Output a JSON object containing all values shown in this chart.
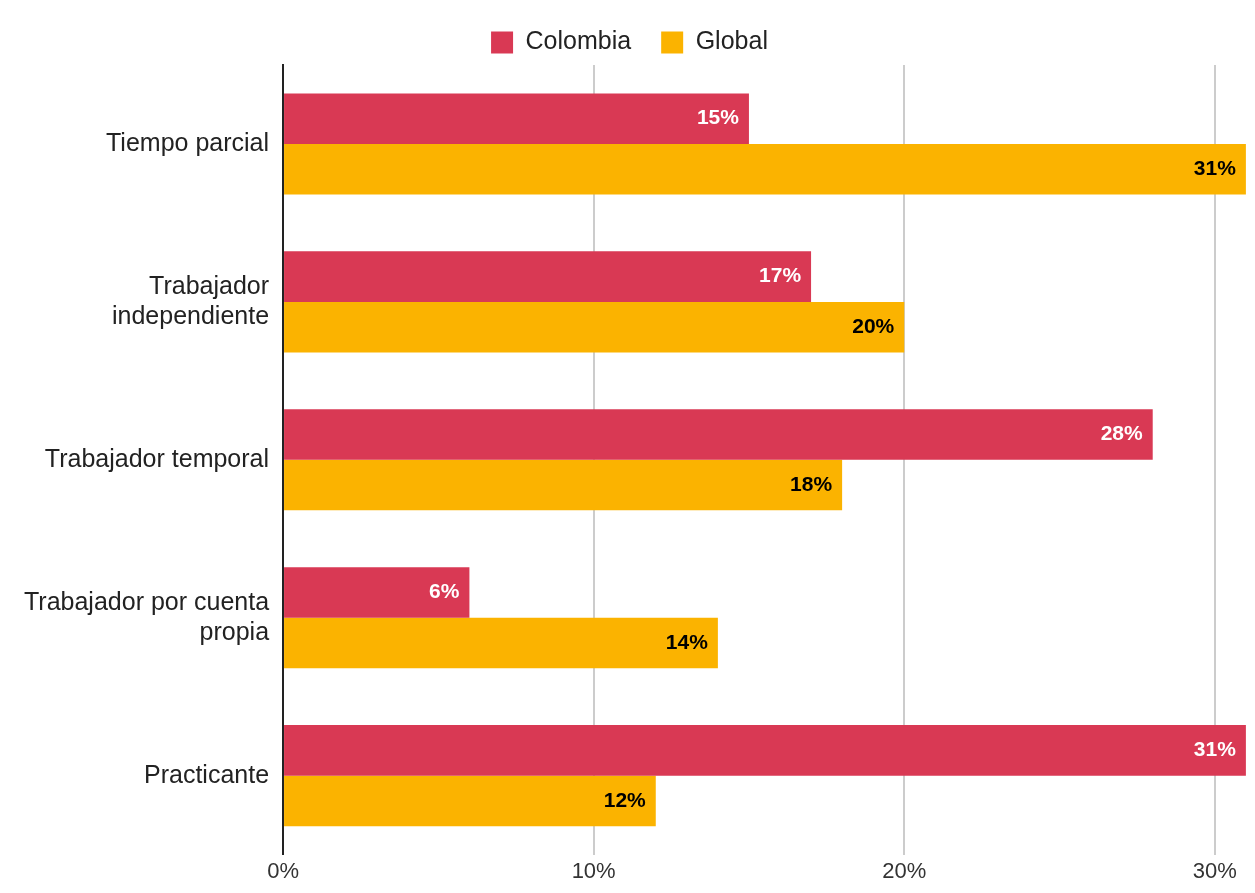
{
  "chart_data": {
    "type": "bar",
    "orientation": "horizontal",
    "categories": [
      "Tiempo parcial",
      "Trabajador independiente",
      "Trabajador temporal",
      "Trabajador por cuenta propia",
      "Practicante"
    ],
    "series": [
      {
        "name": "Colombia",
        "color": "#d93954",
        "values": [
          15,
          17,
          28,
          6,
          31
        ],
        "value_labels": [
          "15%",
          "17%",
          "28%",
          "6%",
          "31%"
        ]
      },
      {
        "name": "Global",
        "color": "#fbb300",
        "values": [
          31,
          20,
          18,
          14,
          12
        ],
        "value_labels": [
          "31%",
          "20%",
          "18%",
          "14%",
          "12%"
        ]
      }
    ],
    "xlim": [
      0,
      31.1
    ],
    "xticks": [
      {
        "value": 0,
        "label": "0%"
      },
      {
        "value": 10,
        "label": "10%"
      },
      {
        "value": 20,
        "label": "20%"
      },
      {
        "value": 30,
        "label": "30%"
      }
    ],
    "grid": "x",
    "legend": "top"
  }
}
